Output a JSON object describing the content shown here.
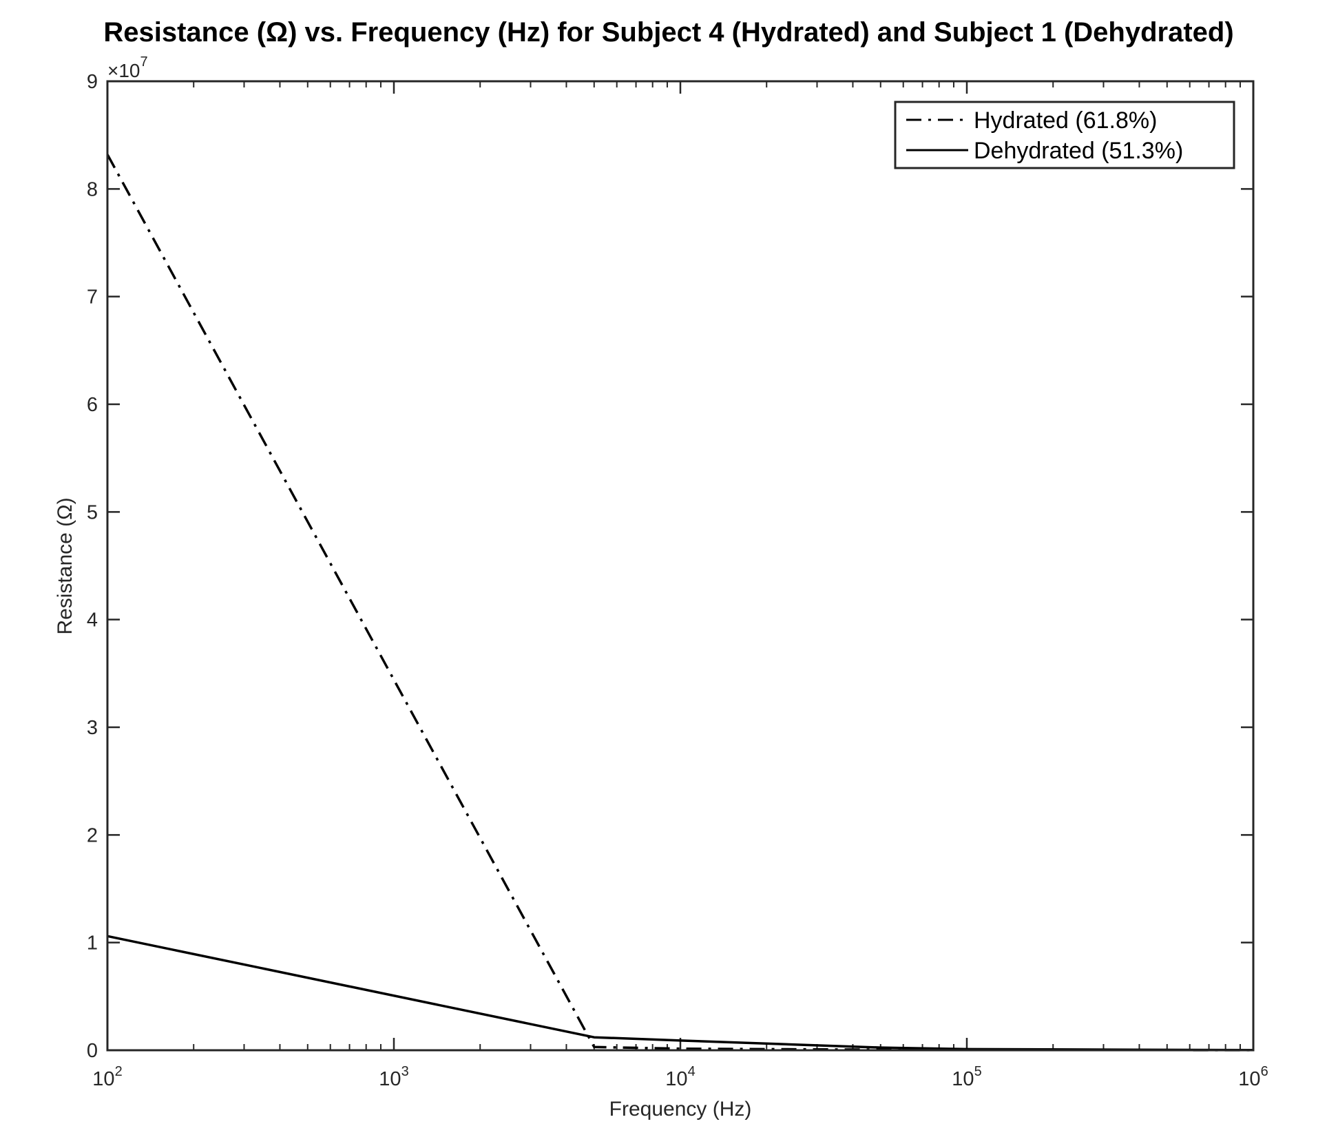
{
  "chart_data": {
    "type": "line",
    "title": "Resistance (Ω) vs. Frequency (Hz) for Subject 4 (Hydrated) and Subject 1 (Dehydrated)",
    "xlabel": "Frequency (Hz)",
    "ylabel": "Resistance (Ω)",
    "x_scale": "log",
    "xlim": [
      100,
      1000000
    ],
    "ylim": [
      0,
      90000000
    ],
    "x_ticks": [
      {
        "base": "10",
        "exp": "2",
        "value": 100
      },
      {
        "base": "10",
        "exp": "3",
        "value": 1000
      },
      {
        "base": "10",
        "exp": "4",
        "value": 10000
      },
      {
        "base": "10",
        "exp": "5",
        "value": 100000
      },
      {
        "base": "10",
        "exp": "6",
        "value": 1000000
      }
    ],
    "y_ticks": [
      {
        "label": "0",
        "value": 0
      },
      {
        "label": "1",
        "value": 10000000
      },
      {
        "label": "2",
        "value": 20000000
      },
      {
        "label": "3",
        "value": 30000000
      },
      {
        "label": "4",
        "value": 40000000
      },
      {
        "label": "5",
        "value": 50000000
      },
      {
        "label": "6",
        "value": 60000000
      },
      {
        "label": "7",
        "value": 70000000
      },
      {
        "label": "8",
        "value": 80000000
      },
      {
        "label": "9",
        "value": 90000000
      }
    ],
    "y_exponent": {
      "prefix": "×10",
      "exp": "7"
    },
    "grid": false,
    "legend_position": "top-right",
    "series": [
      {
        "name": "Hydrated (61.8%)",
        "line_style": "dash-dot",
        "color": "#000000",
        "x": [
          100,
          5000,
          10000,
          50000,
          100000,
          1000000
        ],
        "y": [
          83200000,
          300000,
          150000,
          50000,
          30000,
          5000
        ]
      },
      {
        "name": "Dehydrated (51.3%)",
        "line_style": "solid",
        "color": "#000000",
        "x": [
          100,
          5000,
          10000,
          50000,
          100000,
          1000000
        ],
        "y": [
          10600000,
          1200000,
          900000,
          250000,
          100000,
          10000
        ]
      }
    ]
  }
}
